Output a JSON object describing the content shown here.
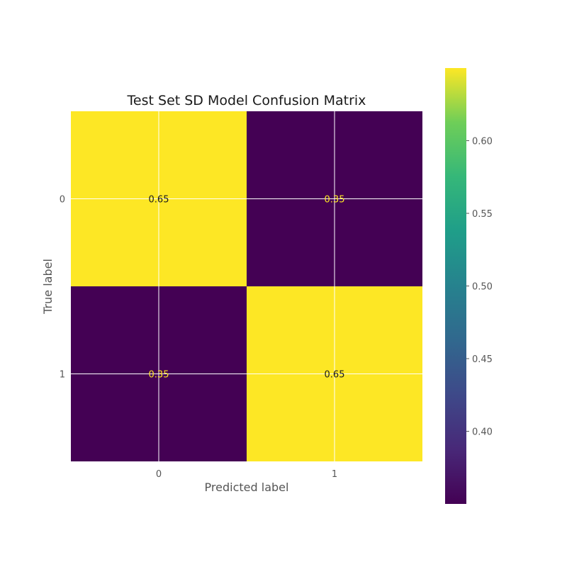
{
  "chart_data": {
    "type": "heatmap",
    "title": "Test Set SD Model Confusion Matrix",
    "xlabel": "Predicted label",
    "ylabel": "True label",
    "x_categories": [
      "0",
      "1"
    ],
    "y_categories": [
      "0",
      "1"
    ],
    "values": [
      [
        0.65,
        0.35
      ],
      [
        0.35,
        0.65
      ]
    ],
    "value_labels": [
      [
        "0.65",
        "0.35"
      ],
      [
        "0.35",
        "0.65"
      ]
    ],
    "colormap": "viridis",
    "colorbar": {
      "range": [
        0.35,
        0.65
      ],
      "ticks": [
        0.4,
        0.45,
        0.5,
        0.55,
        0.6
      ],
      "tick_labels": [
        "0.40",
        "0.45",
        "0.50",
        "0.55",
        "0.60"
      ]
    },
    "grid": true,
    "colors": {
      "low": "#440154",
      "high": "#fde725",
      "text_on_high": "#1a1a1a",
      "text_on_low": "#fde725"
    }
  }
}
